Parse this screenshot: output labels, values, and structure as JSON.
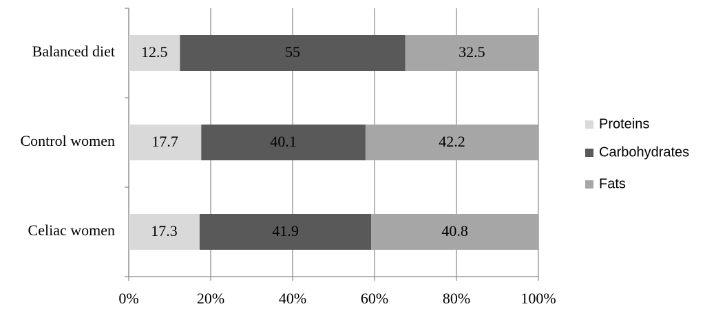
{
  "chart_data": {
    "type": "bar",
    "orientation": "horizontal",
    "stacked": true,
    "categories": [
      "Balanced diet",
      "Control women",
      "Celiac women"
    ],
    "series": [
      {
        "name": "Proteins",
        "color": "#d9d9d9",
        "values": [
          12.5,
          17.7,
          17.3
        ]
      },
      {
        "name": "Carbohydrates",
        "color": "#595959",
        "values": [
          55,
          40.1,
          41.9
        ]
      },
      {
        "name": "Fats",
        "color": "#a6a6a6",
        "values": [
          32.5,
          42.2,
          40.8
        ]
      }
    ],
    "xlim": [
      0,
      100
    ],
    "xticks": [
      {
        "value": 0,
        "label": "0%"
      },
      {
        "value": 20,
        "label": "20%"
      },
      {
        "value": 40,
        "label": "40%"
      },
      {
        "value": 60,
        "label": "60%"
      },
      {
        "value": 80,
        "label": "80%"
      },
      {
        "value": 100,
        "label": "100%"
      }
    ],
    "grid": true,
    "legend": "right"
  }
}
